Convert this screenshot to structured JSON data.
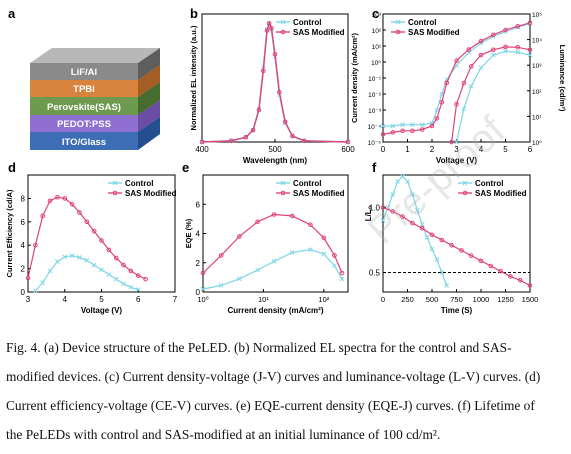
{
  "colors": {
    "control": "#7fd6e6",
    "sas": "#e0427a",
    "axis": "#000000",
    "ref_line": "#000000"
  },
  "panels": {
    "a": {
      "letter": "a",
      "layers": [
        "LiF/Al",
        "TPBi",
        "Perovskite(SAS)",
        "PEDOT:PSS",
        "ITO/Glass"
      ]
    },
    "b": {
      "letter": "b"
    },
    "c": {
      "letter": "c"
    },
    "d": {
      "letter": "d"
    },
    "e": {
      "letter": "e"
    },
    "f": {
      "letter": "f"
    }
  },
  "chart_data": [
    {
      "panel": "b",
      "type": "line",
      "xlabel": "Wavelength (nm)",
      "ylabel": "Normalized EL intensity (a.u.)",
      "xlim": [
        400,
        600
      ],
      "xticks": [
        400,
        500,
        600
      ],
      "xtick_labels": [
        "400",
        "500",
        "600"
      ],
      "legend": "top-right",
      "series": [
        {
          "name": "Control",
          "x": [
            400,
            440,
            460,
            470,
            478,
            484,
            489,
            492,
            495,
            500,
            506,
            514,
            524,
            540,
            600
          ],
          "y": [
            0,
            0.01,
            0.04,
            0.1,
            0.28,
            0.62,
            0.95,
            1.0,
            0.95,
            0.72,
            0.4,
            0.16,
            0.05,
            0.01,
            0
          ]
        },
        {
          "name": "SAS Modified",
          "x": [
            400,
            440,
            460,
            470,
            478,
            484,
            489,
            492,
            495,
            500,
            506,
            514,
            524,
            540,
            600
          ],
          "y": [
            0,
            0.01,
            0.04,
            0.1,
            0.27,
            0.6,
            0.94,
            1.0,
            0.96,
            0.74,
            0.42,
            0.17,
            0.05,
            0.01,
            0
          ]
        }
      ]
    },
    {
      "panel": "c",
      "type": "line",
      "xlabel": "Voltage (V)",
      "ylabel": "Current density (mA/cm²)",
      "ylabel_right": "Luminance (cd/m²)",
      "xlim": [
        0,
        6
      ],
      "xticks": [
        0,
        1,
        2,
        3,
        4,
        5,
        6
      ],
      "y_log_exponents": [
        -5,
        3
      ],
      "y_tick_exponents": [
        -5,
        -4,
        -3,
        -2,
        -1,
        0,
        1,
        2,
        3
      ],
      "y2_log_exponents": [
        0,
        5
      ],
      "y2_tick_exponents": [
        0,
        1,
        2,
        3,
        4,
        5
      ],
      "legend": "top-left",
      "series": [
        {
          "name": "Control",
          "kind": "current",
          "x": [
            0,
            0.4,
            0.8,
            1.2,
            1.6,
            2.0,
            2.2,
            2.4,
            2.6,
            3.0,
            3.5,
            4.0,
            4.5,
            5.0,
            5.5,
            6.0
          ],
          "y": [
            0.0001,
            0.0001,
            0.00012,
            0.00012,
            0.00012,
            0.00015,
            0.001,
            0.01,
            0.08,
            0.6,
            4,
            15,
            40,
            80,
            150,
            250
          ]
        },
        {
          "name": "SAS Modified",
          "kind": "current",
          "x": [
            0,
            0.4,
            0.8,
            1.2,
            1.6,
            2.0,
            2.2,
            2.4,
            2.6,
            3.0,
            3.5,
            4.0,
            4.5,
            5.0,
            5.5,
            6.0
          ],
          "y": [
            3e-05,
            4e-05,
            5e-05,
            5e-05,
            6e-05,
            0.0001,
            0.0003,
            0.003,
            0.05,
            1.2,
            6,
            20,
            50,
            100,
            170,
            280
          ]
        },
        {
          "name": "Control",
          "kind": "luminance",
          "x": [
            3.0,
            3.3,
            3.6,
            4.0,
            4.5,
            5.0,
            5.5,
            6.0
          ],
          "y": [
            1,
            20,
            150,
            800,
            2500,
            3500,
            3200,
            2500
          ]
        },
        {
          "name": "SAS Modified",
          "kind": "luminance",
          "x": [
            2.8,
            3.0,
            3.3,
            3.6,
            4.0,
            4.5,
            5.0,
            5.5,
            6.0
          ],
          "y": [
            1,
            30,
            200,
            900,
            2500,
            4000,
            5200,
            5000,
            4000
          ]
        }
      ]
    },
    {
      "panel": "d",
      "type": "line",
      "xlabel": "Voltage (V)",
      "ylabel": "Current Efficiency (cd/A)",
      "xlim": [
        3,
        7
      ],
      "xticks": [
        3,
        4,
        5,
        6,
        7
      ],
      "ylim": [
        0,
        10
      ],
      "yticks": [
        0,
        2,
        4,
        6,
        8
      ],
      "legend": "top-right",
      "series": [
        {
          "name": "Control",
          "x": [
            3.2,
            3.4,
            3.6,
            3.8,
            4.0,
            4.2,
            4.4,
            4.6,
            4.8,
            5.0,
            5.2,
            5.4,
            5.6,
            5.8,
            6.0
          ],
          "y": [
            0.1,
            0.8,
            1.8,
            2.6,
            3.0,
            3.1,
            2.95,
            2.7,
            2.3,
            1.9,
            1.5,
            1.1,
            0.7,
            0.4,
            0.2
          ]
        },
        {
          "name": "SAS Modified",
          "x": [
            3.0,
            3.2,
            3.4,
            3.6,
            3.8,
            4.0,
            4.2,
            4.4,
            4.6,
            4.8,
            5.0,
            5.2,
            5.4,
            5.6,
            5.8,
            6.0,
            6.2
          ],
          "y": [
            1.2,
            4.0,
            6.5,
            7.8,
            8.1,
            8.0,
            7.5,
            6.8,
            6.0,
            5.2,
            4.4,
            3.6,
            2.9,
            2.3,
            1.8,
            1.4,
            1.1
          ]
        }
      ]
    },
    {
      "panel": "e",
      "type": "line",
      "xlabel": "Current density (mA/cm²)",
      "ylabel": "EQE (%)",
      "x_log_exponents": [
        0,
        2.4
      ],
      "x_tick_exponents": [
        0,
        1,
        2
      ],
      "ylim": [
        0,
        8
      ],
      "yticks": [
        0,
        2,
        4,
        6
      ],
      "legend": "top-right",
      "series": [
        {
          "name": "Control",
          "x": [
            1,
            2,
            4,
            8,
            15,
            30,
            60,
            100,
            150,
            200
          ],
          "y": [
            0.2,
            0.45,
            0.9,
            1.5,
            2.1,
            2.7,
            2.9,
            2.6,
            1.8,
            0.9
          ]
        },
        {
          "name": "SAS Modified",
          "x": [
            1,
            2,
            4,
            8,
            15,
            30,
            60,
            100,
            150,
            200
          ],
          "y": [
            1.3,
            2.5,
            3.8,
            4.8,
            5.3,
            5.2,
            4.6,
            3.7,
            2.5,
            1.3
          ]
        }
      ]
    },
    {
      "panel": "f",
      "type": "line",
      "xlabel": "Time (S)",
      "ylabel": "L/L₀",
      "xlim": [
        0,
        1500
      ],
      "xticks": [
        0,
        250,
        500,
        750,
        1000,
        1250,
        1500
      ],
      "ylim": [
        0.35,
        1.25
      ],
      "yticks": [
        0.5,
        1.0
      ],
      "ytick_labels": [
        "0.5",
        "1.0"
      ],
      "legend": "top-right",
      "reference_y": 0.5,
      "series": [
        {
          "name": "Control",
          "x": [
            0,
            50,
            100,
            150,
            200,
            250,
            300,
            350,
            400,
            450,
            500,
            550,
            600,
            650
          ],
          "y": [
            0.9,
            1.0,
            1.1,
            1.2,
            1.24,
            1.2,
            1.1,
            0.98,
            0.87,
            0.77,
            0.68,
            0.6,
            0.5,
            0.4
          ]
        },
        {
          "name": "SAS Modified",
          "x": [
            0,
            100,
            200,
            300,
            400,
            500,
            600,
            700,
            800,
            900,
            1000,
            1100,
            1200,
            1300,
            1400,
            1500
          ],
          "y": [
            1.0,
            0.97,
            0.93,
            0.88,
            0.84,
            0.79,
            0.75,
            0.71,
            0.67,
            0.63,
            0.59,
            0.55,
            0.51,
            0.47,
            0.44,
            0.4
          ]
        }
      ]
    }
  ],
  "caption": {
    "line1": "Fig. 4. (a) Device structure of the PeLED. (b) Normalized EL spectra for the control and SAS-",
    "line2": "modified devices. (c) Current density-voltage (J-V) curves and luminance-voltage (L-V) curves. (d)",
    "line3": "Current efficiency-voltage (CE-V) curves. (e) EQE-current density (EQE-J) curves. (f) Lifetime of",
    "line4": "the PeLEDs with control and SAS-modified at an initial luminance of 100 cd/m²."
  },
  "watermark": "Pre-proof"
}
